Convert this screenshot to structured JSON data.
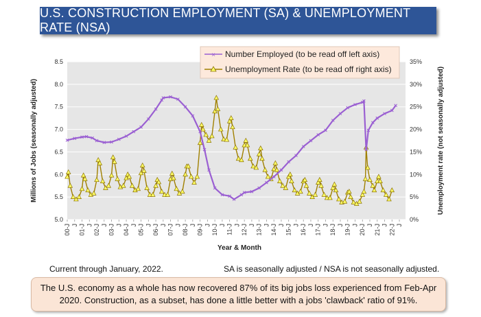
{
  "header": {
    "title": "U.S. CONSTRUCTION EMPLOYMENT (SA) & UNEMPLOYMENT RATE (NSA)"
  },
  "notes": {
    "left": "Current through January, 2022.",
    "right": "SA is seasonally adjusted / NSA is not seasonally adjusted."
  },
  "summary": "The U.S. economy as a whole has now recovered 87% of its big jobs loss experienced from Feb-Apr 2020. Construction, as a subset, has done a little better with a jobs 'clawback' ratio of 91%.",
  "colors": {
    "employed": "#9a5fd2",
    "unemployment_line": "#a08000",
    "unemployment_marker": "#ffff66",
    "plot_bg": "#e6e6e6",
    "banner": "#2e5597"
  },
  "chart_data": {
    "type": "line",
    "xlabel": "Year & Month",
    "ylabel_left": "Millions of Jobs (seasonally adjusted)",
    "ylabel_right": "Unemployment rate (not seasonally adjusted)",
    "ylim_left": [
      5.0,
      8.5
    ],
    "ylim_right": [
      0,
      35
    ],
    "y_ticks_left": [
      "5.0",
      "5.5",
      "6.0",
      "6.5",
      "7.0",
      "7.5",
      "8.0",
      "8.5"
    ],
    "y_ticks_right": [
      "0%",
      "5%",
      "10%",
      "15%",
      "20%",
      "25%",
      "30%",
      "35%"
    ],
    "x_ticks": [
      "00-J",
      "J",
      "01-J",
      "J",
      "02-J",
      "J",
      "03-J",
      "J",
      "04-J",
      "J",
      "05-J",
      "J",
      "06-J",
      "J",
      "07-J",
      "J",
      "08-J",
      "J",
      "09-J",
      "J",
      "10-J",
      "J",
      "11-J",
      "J",
      "12-J",
      "J",
      "13-J",
      "J",
      "14-J",
      "J",
      "15-J",
      "J",
      "16-J",
      "J",
      "17-J",
      "J",
      "18-J",
      "J",
      "19-J",
      "J",
      "20-J",
      "J",
      "21-J",
      "J",
      "22-J",
      "J"
    ],
    "x_range_years": [
      2000.0,
      2022.917
    ],
    "legend_position": "top-right",
    "series": [
      {
        "name": "Number Employed (to be read off left axis)",
        "axis": "left",
        "points": [
          [
            2000.0,
            6.76
          ],
          [
            2000.5,
            6.8
          ],
          [
            2001.0,
            6.83
          ],
          [
            2001.3,
            6.84
          ],
          [
            2001.7,
            6.81
          ],
          [
            2002.0,
            6.75
          ],
          [
            2002.5,
            6.71
          ],
          [
            2003.0,
            6.72
          ],
          [
            2003.5,
            6.78
          ],
          [
            2004.0,
            6.85
          ],
          [
            2004.5,
            6.95
          ],
          [
            2005.0,
            7.05
          ],
          [
            2005.5,
            7.23
          ],
          [
            2006.0,
            7.45
          ],
          [
            2006.4,
            7.65
          ],
          [
            2006.5,
            7.7
          ],
          [
            2007.0,
            7.72
          ],
          [
            2007.5,
            7.67
          ],
          [
            2008.0,
            7.5
          ],
          [
            2008.5,
            7.3
          ],
          [
            2009.0,
            6.95
          ],
          [
            2009.3,
            6.55
          ],
          [
            2009.6,
            6.1
          ],
          [
            2010.0,
            5.7
          ],
          [
            2010.5,
            5.55
          ],
          [
            2011.0,
            5.52
          ],
          [
            2011.3,
            5.45
          ],
          [
            2011.8,
            5.55
          ],
          [
            2012.0,
            5.6
          ],
          [
            2012.5,
            5.62
          ],
          [
            2013.0,
            5.7
          ],
          [
            2013.5,
            5.82
          ],
          [
            2014.0,
            5.95
          ],
          [
            2014.5,
            6.1
          ],
          [
            2015.0,
            6.28
          ],
          [
            2015.5,
            6.42
          ],
          [
            2016.0,
            6.62
          ],
          [
            2016.5,
            6.75
          ],
          [
            2017.0,
            6.88
          ],
          [
            2017.5,
            6.98
          ],
          [
            2018.0,
            7.2
          ],
          [
            2018.5,
            7.35
          ],
          [
            2019.0,
            7.48
          ],
          [
            2019.5,
            7.55
          ],
          [
            2020.0,
            7.6
          ],
          [
            2020.1,
            7.63
          ],
          [
            2020.25,
            6.55
          ],
          [
            2020.4,
            6.98
          ],
          [
            2020.7,
            7.15
          ],
          [
            2021.0,
            7.25
          ],
          [
            2021.5,
            7.35
          ],
          [
            2022.0,
            7.42
          ],
          [
            2022.25,
            7.53
          ]
        ]
      },
      {
        "name": "Unemployment Rate (to be read off right axis)",
        "axis": "right",
        "points": [
          [
            2000.0,
            9.5
          ],
          [
            2000.08,
            10.5
          ],
          [
            2000.2,
            7.5
          ],
          [
            2000.4,
            5
          ],
          [
            2000.6,
            4.5
          ],
          [
            2000.8,
            5
          ],
          [
            2001.0,
            6.8
          ],
          [
            2001.1,
            9.8
          ],
          [
            2001.2,
            9
          ],
          [
            2001.4,
            6.5
          ],
          [
            2001.6,
            5.5
          ],
          [
            2001.8,
            5.8
          ],
          [
            2002.0,
            8.8
          ],
          [
            2002.1,
            13.2
          ],
          [
            2002.2,
            12.5
          ],
          [
            2002.4,
            8.5
          ],
          [
            2002.6,
            7
          ],
          [
            2002.8,
            7.5
          ],
          [
            2003.0,
            9.8
          ],
          [
            2003.1,
            13.8
          ],
          [
            2003.2,
            12.8
          ],
          [
            2003.4,
            9
          ],
          [
            2003.6,
            7.2
          ],
          [
            2003.8,
            7.5
          ],
          [
            2004.0,
            9.2
          ],
          [
            2004.1,
            10
          ],
          [
            2004.2,
            9.5
          ],
          [
            2004.4,
            7.5
          ],
          [
            2004.6,
            6.5
          ],
          [
            2004.8,
            6.8
          ],
          [
            2005.0,
            10.3
          ],
          [
            2005.1,
            12
          ],
          [
            2005.2,
            10.8
          ],
          [
            2005.4,
            7
          ],
          [
            2005.6,
            5.5
          ],
          [
            2005.8,
            5.5
          ],
          [
            2006.0,
            7.5
          ],
          [
            2006.1,
            8.8
          ],
          [
            2006.2,
            8.3
          ],
          [
            2006.4,
            6.2
          ],
          [
            2006.6,
            5.5
          ],
          [
            2006.8,
            5.5
          ],
          [
            2007.0,
            9
          ],
          [
            2007.1,
            10.2
          ],
          [
            2007.2,
            9.2
          ],
          [
            2007.4,
            6.8
          ],
          [
            2007.6,
            5.8
          ],
          [
            2007.8,
            6.2
          ],
          [
            2008.0,
            10
          ],
          [
            2008.1,
            11.8
          ],
          [
            2008.2,
            11.8
          ],
          [
            2008.4,
            9.5
          ],
          [
            2008.6,
            8.2
          ],
          [
            2008.8,
            9.5
          ],
          [
            2009.0,
            17
          ],
          [
            2009.1,
            21
          ],
          [
            2009.2,
            20
          ],
          [
            2009.4,
            18.8
          ],
          [
            2009.6,
            17.5
          ],
          [
            2009.8,
            18.5
          ],
          [
            2010.0,
            24
          ],
          [
            2010.1,
            27
          ],
          [
            2010.2,
            24.5
          ],
          [
            2010.4,
            20
          ],
          [
            2010.6,
            17.8
          ],
          [
            2010.8,
            17.7
          ],
          [
            2011.0,
            21.8
          ],
          [
            2011.1,
            22.5
          ],
          [
            2011.2,
            20.5
          ],
          [
            2011.4,
            16
          ],
          [
            2011.6,
            13.5
          ],
          [
            2011.8,
            13.2
          ],
          [
            2012.0,
            16.5
          ],
          [
            2012.1,
            17.5
          ],
          [
            2012.2,
            16.5
          ],
          [
            2012.4,
            13.5
          ],
          [
            2012.6,
            11.8
          ],
          [
            2012.8,
            11.5
          ],
          [
            2013.0,
            14.5
          ],
          [
            2013.1,
            15.8
          ],
          [
            2013.2,
            13.5
          ],
          [
            2013.4,
            11
          ],
          [
            2013.6,
            9.5
          ],
          [
            2013.8,
            9
          ],
          [
            2014.0,
            11.2
          ],
          [
            2014.1,
            12.5
          ],
          [
            2014.2,
            11
          ],
          [
            2014.4,
            8.5
          ],
          [
            2014.6,
            7.5
          ],
          [
            2014.8,
            7
          ],
          [
            2015.0,
            9.5
          ],
          [
            2015.1,
            10
          ],
          [
            2015.2,
            8.5
          ],
          [
            2015.4,
            6.5
          ],
          [
            2015.6,
            5.8
          ],
          [
            2015.8,
            6.2
          ],
          [
            2016.0,
            8.5
          ],
          [
            2016.1,
            8.8
          ],
          [
            2016.2,
            7.5
          ],
          [
            2016.4,
            5.8
          ],
          [
            2016.6,
            5
          ],
          [
            2016.8,
            5.5
          ],
          [
            2017.0,
            8.2
          ],
          [
            2017.1,
            8.8
          ],
          [
            2017.2,
            7.5
          ],
          [
            2017.4,
            5.5
          ],
          [
            2017.6,
            4.8
          ],
          [
            2017.8,
            4.8
          ],
          [
            2018.0,
            7
          ],
          [
            2018.1,
            7.8
          ],
          [
            2018.2,
            6.5
          ],
          [
            2018.4,
            4.5
          ],
          [
            2018.6,
            3.8
          ],
          [
            2018.8,
            4
          ],
          [
            2019.0,
            6
          ],
          [
            2019.1,
            6.2
          ],
          [
            2019.2,
            5
          ],
          [
            2019.4,
            3.8
          ],
          [
            2019.6,
            3.5
          ],
          [
            2019.8,
            4
          ],
          [
            2020.0,
            5.5
          ],
          [
            2020.1,
            6.2
          ],
          [
            2020.2,
            9
          ],
          [
            2020.25,
            16
          ],
          [
            2020.35,
            11.5
          ],
          [
            2020.5,
            8.8
          ],
          [
            2020.7,
            7.5
          ],
          [
            2020.8,
            6.5
          ],
          [
            2021.0,
            8.5
          ],
          [
            2021.1,
            9.5
          ],
          [
            2021.2,
            8.5
          ],
          [
            2021.4,
            6.5
          ],
          [
            2021.6,
            5.5
          ],
          [
            2021.8,
            4.5
          ],
          [
            2022.0,
            6.5
          ]
        ]
      }
    ]
  }
}
